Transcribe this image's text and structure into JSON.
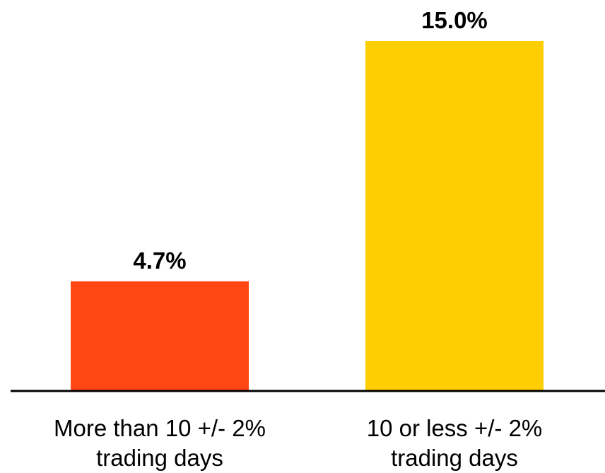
{
  "chart_data": {
    "type": "bar",
    "categories": [
      [
        "More than 10 +/- 2%",
        "trading days"
      ],
      [
        "10 or less +/- 2%",
        "trading days"
      ]
    ],
    "values": [
      4.7,
      15.0
    ],
    "data_labels": [
      "4.7%",
      "15.0%"
    ],
    "colors": [
      "#FF4713",
      "#FFCE00"
    ],
    "title": "",
    "xlabel": "",
    "ylabel": "",
    "ylim": [
      0,
      15
    ],
    "grid": false,
    "legend": "none"
  }
}
